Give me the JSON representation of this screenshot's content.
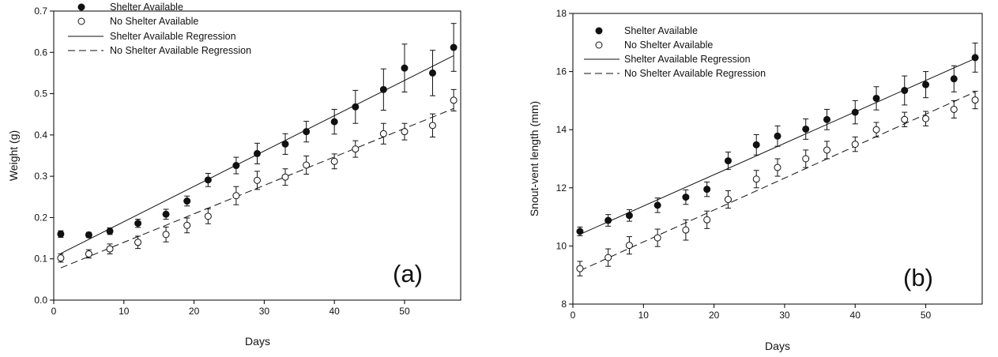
{
  "chart_data": [
    {
      "type": "scatter",
      "panel_label": "(a)",
      "xlabel": "Days",
      "ylabel": "Weight (g)",
      "xlim": [
        0,
        58
      ],
      "ylim": [
        0,
        0.7
      ],
      "xticks": [
        0,
        10,
        20,
        30,
        40,
        50
      ],
      "xtick_labels": [
        "0",
        "10",
        "20",
        "30",
        "40",
        "50"
      ],
      "yticks": [
        0,
        0.1,
        0.2,
        0.3,
        0.4,
        0.5,
        0.6,
        0.7
      ],
      "ytick_labels": [
        "0.0",
        "0.1",
        "0.2",
        "0.3",
        "0.4",
        "0.5",
        "0.6",
        "0.7"
      ],
      "grid": false,
      "legend_position": "top-left",
      "series": [
        {
          "name": "Shelter Available",
          "marker": "filled-circle",
          "x": [
            1,
            5,
            8,
            12,
            16,
            19,
            22,
            26,
            29,
            33,
            36,
            40,
            43,
            47,
            50,
            54,
            57
          ],
          "y": [
            0.16,
            0.158,
            0.167,
            0.186,
            0.208,
            0.24,
            0.291,
            0.326,
            0.355,
            0.378,
            0.408,
            0.432,
            0.468,
            0.51,
            0.562,
            0.55,
            0.612
          ],
          "err": [
            0.008,
            0.006,
            0.008,
            0.01,
            0.012,
            0.012,
            0.016,
            0.02,
            0.025,
            0.025,
            0.025,
            0.03,
            0.04,
            0.05,
            0.058,
            0.055,
            0.058
          ]
        },
        {
          "name": "No Shelter Available",
          "marker": "open-circle",
          "x": [
            1,
            5,
            8,
            12,
            16,
            19,
            22,
            26,
            29,
            33,
            36,
            40,
            43,
            47,
            50,
            54,
            57
          ],
          "y": [
            0.102,
            0.112,
            0.124,
            0.14,
            0.159,
            0.181,
            0.203,
            0.253,
            0.29,
            0.298,
            0.327,
            0.336,
            0.366,
            0.403,
            0.408,
            0.423,
            0.484
          ],
          "err": [
            0.01,
            0.01,
            0.012,
            0.015,
            0.018,
            0.018,
            0.018,
            0.022,
            0.022,
            0.02,
            0.022,
            0.018,
            0.02,
            0.025,
            0.02,
            0.028,
            0.026
          ]
        }
      ],
      "regressions": [
        {
          "name": "Shelter Available Regression",
          "style": "solid",
          "x": [
            1,
            57
          ],
          "y": [
            0.113,
            0.592
          ]
        },
        {
          "name": "No Shelter Available Regression",
          "style": "dashed",
          "x": [
            1,
            57
          ],
          "y": [
            0.078,
            0.464
          ]
        }
      ]
    },
    {
      "type": "scatter",
      "panel_label": "(b)",
      "xlabel": "Days",
      "ylabel": "Snout-vent length (mm)",
      "xlim": [
        0,
        58
      ],
      "ylim": [
        8,
        18
      ],
      "xticks": [
        0,
        10,
        20,
        30,
        40,
        50
      ],
      "xtick_labels": [
        "0",
        "10",
        "20",
        "30",
        "40",
        "50"
      ],
      "yticks": [
        8,
        10,
        12,
        14,
        16,
        18
      ],
      "ytick_labels": [
        "8",
        "10",
        "12",
        "14",
        "16",
        "18"
      ],
      "grid": false,
      "legend_position": "top-left",
      "series": [
        {
          "name": "Shelter Available",
          "marker": "filled-circle",
          "x": [
            1,
            5,
            8,
            12,
            16,
            19,
            22,
            26,
            29,
            33,
            36,
            40,
            43,
            47,
            50,
            54,
            57
          ],
          "y": [
            10.5,
            10.88,
            11.05,
            11.4,
            11.68,
            11.95,
            12.93,
            13.48,
            13.78,
            14.02,
            14.35,
            14.6,
            15.08,
            15.35,
            15.55,
            15.75,
            16.48
          ],
          "err": [
            0.15,
            0.2,
            0.2,
            0.25,
            0.25,
            0.25,
            0.3,
            0.35,
            0.35,
            0.35,
            0.35,
            0.4,
            0.4,
            0.5,
            0.45,
            0.45,
            0.5
          ]
        },
        {
          "name": "No Shelter Available",
          "marker": "open-circle",
          "x": [
            1,
            5,
            8,
            12,
            16,
            19,
            22,
            26,
            29,
            33,
            36,
            40,
            43,
            47,
            50,
            54,
            57
          ],
          "y": [
            9.22,
            9.6,
            10.02,
            10.28,
            10.55,
            10.9,
            11.6,
            12.3,
            12.7,
            13.0,
            13.3,
            13.5,
            14.0,
            14.35,
            14.38,
            14.7,
            15.02
          ],
          "err": [
            0.25,
            0.3,
            0.3,
            0.3,
            0.35,
            0.3,
            0.3,
            0.3,
            0.3,
            0.3,
            0.3,
            0.25,
            0.25,
            0.25,
            0.25,
            0.3,
            0.3
          ]
        }
      ],
      "regressions": [
        {
          "name": "Shelter Available Regression",
          "style": "solid",
          "x": [
            1,
            57
          ],
          "y": [
            10.4,
            16.45
          ]
        },
        {
          "name": "No Shelter Available Regression",
          "style": "dashed",
          "x": [
            1,
            57
          ],
          "y": [
            9.15,
            15.3
          ]
        }
      ]
    }
  ]
}
